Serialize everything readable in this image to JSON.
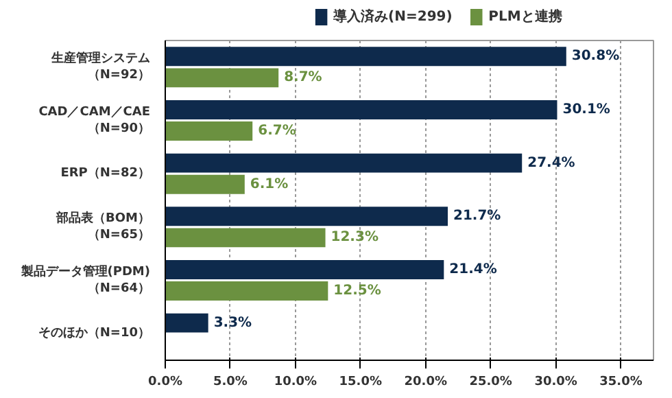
{
  "chart_data": {
    "type": "bar",
    "orientation": "horizontal",
    "categories": [
      "生産管理システム（N=92）",
      "CAD／CAM／CAE（N=90）",
      "ERP（N=82）",
      "部品表（BOM）（N=65）",
      "製品データ管理(PDM)（N=64）",
      "そのほか（N=10）"
    ],
    "series": [
      {
        "name": "導入済み(N=299)",
        "color": "#0e2a4c",
        "values": [
          30.8,
          30.1,
          27.4,
          21.7,
          21.4,
          3.3
        ],
        "value_labels": [
          "30.8%",
          "30.1%",
          "27.4%",
          "21.7%",
          "21.4%",
          "3.3%"
        ]
      },
      {
        "name": "PLMと連携",
        "color": "#6b9140",
        "values": [
          8.7,
          6.7,
          6.1,
          12.3,
          12.5,
          null
        ],
        "value_labels": [
          "8.7%",
          "6.7%",
          "6.1%",
          "12.3%",
          "12.5%",
          null
        ]
      }
    ],
    "xlim": [
      0,
      37.5
    ],
    "xticks": [
      {
        "value": 0,
        "label": "0.0%"
      },
      {
        "value": 5,
        "label": "5.0%"
      },
      {
        "value": 10,
        "label": "10.0%"
      },
      {
        "value": 15,
        "label": "15.0%"
      },
      {
        "value": 20,
        "label": "20.0%"
      },
      {
        "value": 25,
        "label": "25.0%"
      },
      {
        "value": 30,
        "label": "30.0%"
      },
      {
        "value": 35,
        "label": "35.0%"
      }
    ],
    "grid": "x",
    "legend": "top"
  }
}
